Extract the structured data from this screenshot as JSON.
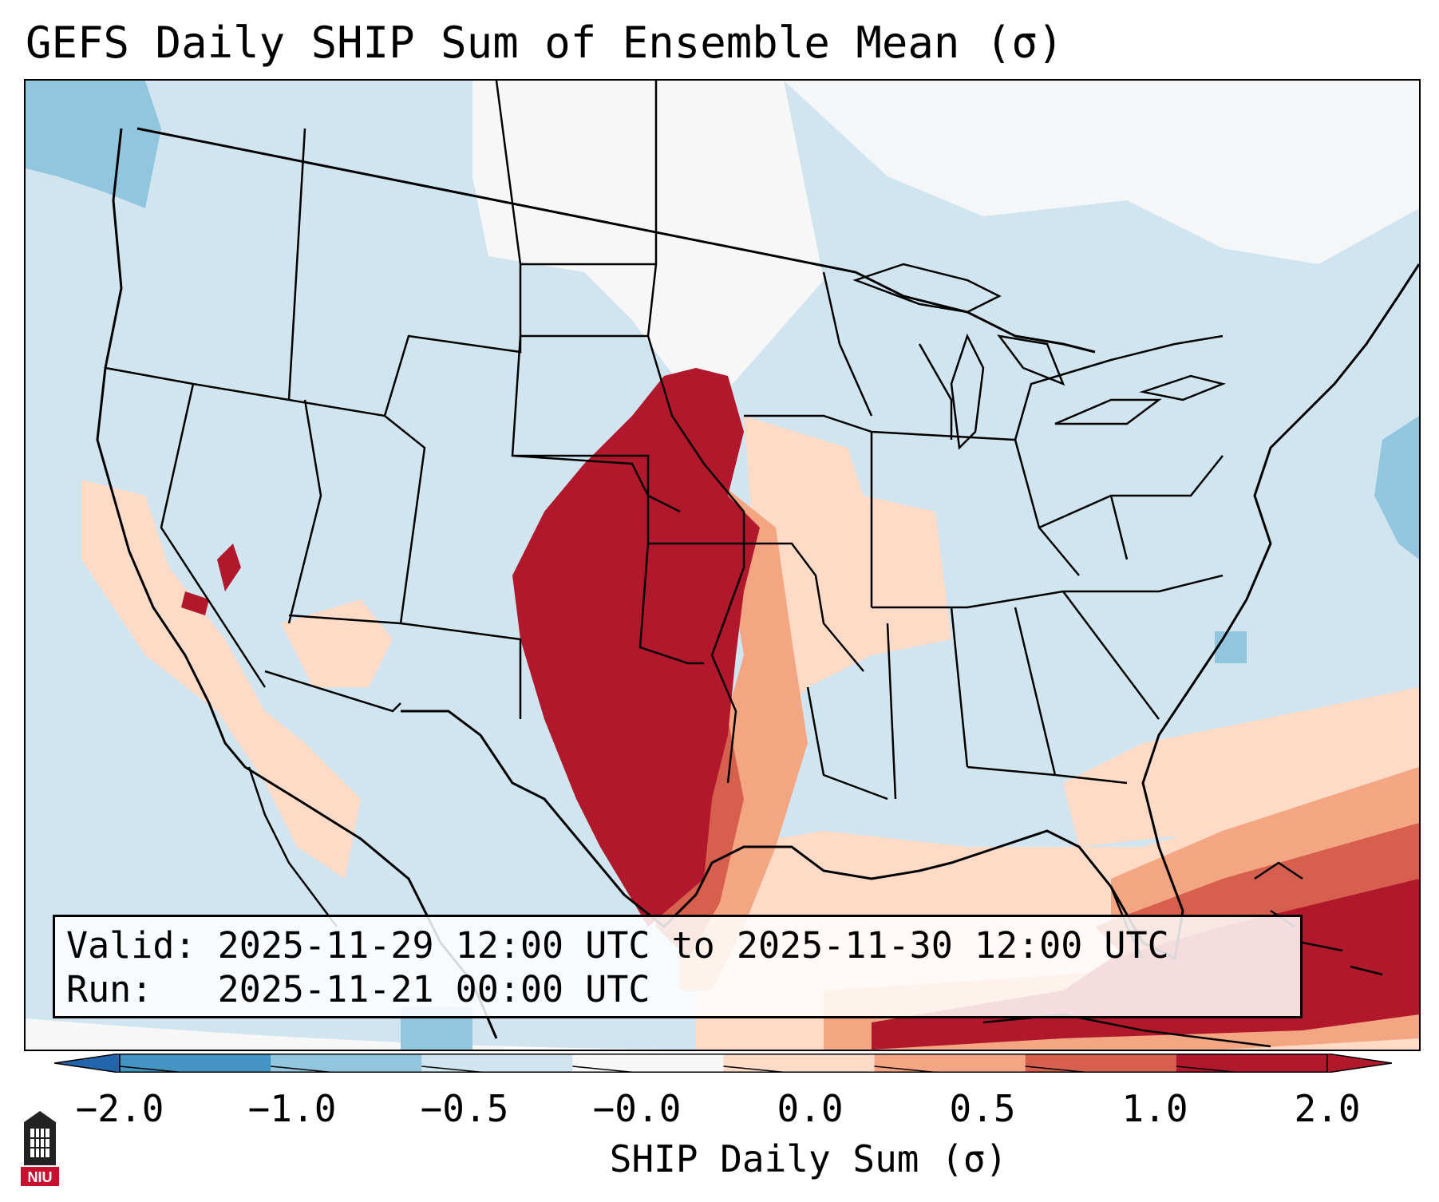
{
  "title": "GEFS Daily SHIP Sum of Ensemble Mean (σ)",
  "map": {
    "region": "Contiguous United States",
    "background_color": "#d1e5f0",
    "line_color": "#000000"
  },
  "info": {
    "valid_line": "Valid: 2025-11-29 12:00 UTC to 2025-11-30 12:00 UTC",
    "run_line": "Run:   2025-11-21 00:00 UTC"
  },
  "colorbar": {
    "label": "SHIP Daily Sum (σ)",
    "ticks": [
      "−2.0",
      "−1.0",
      "−0.5",
      "−0.0",
      "0.0",
      "0.5",
      "1.0",
      "2.0"
    ],
    "colors": [
      "#4393c3",
      "#92c5de",
      "#d1e5f0",
      "#f7f7f7",
      "#fddbc7",
      "#f4a582",
      "#d6604d",
      "#b2182b"
    ],
    "extend_low_color": "#2166ac",
    "extend_high_color": "#b2182b"
  },
  "legend_levels": [
    {
      "range": "< -2.0",
      "color": "#2166ac"
    },
    {
      "range": "-2.0 to -1.0",
      "color": "#4393c3"
    },
    {
      "range": "-1.0 to -0.5",
      "color": "#92c5de"
    },
    {
      "range": "-0.5 to 0.0",
      "color": "#d1e5f0"
    },
    {
      "range": "0.0",
      "color": "#f7f7f7"
    },
    {
      "range": "0.0 to 0.5",
      "color": "#fddbc7"
    },
    {
      "range": "0.5 to 1.0",
      "color": "#f4a582"
    },
    {
      "range": "1.0 to 2.0",
      "color": "#d6604d"
    },
    {
      "range": "> 2.0",
      "color": "#b2182b"
    }
  ],
  "logo": {
    "text": "NIU",
    "color": "#c8102e"
  }
}
